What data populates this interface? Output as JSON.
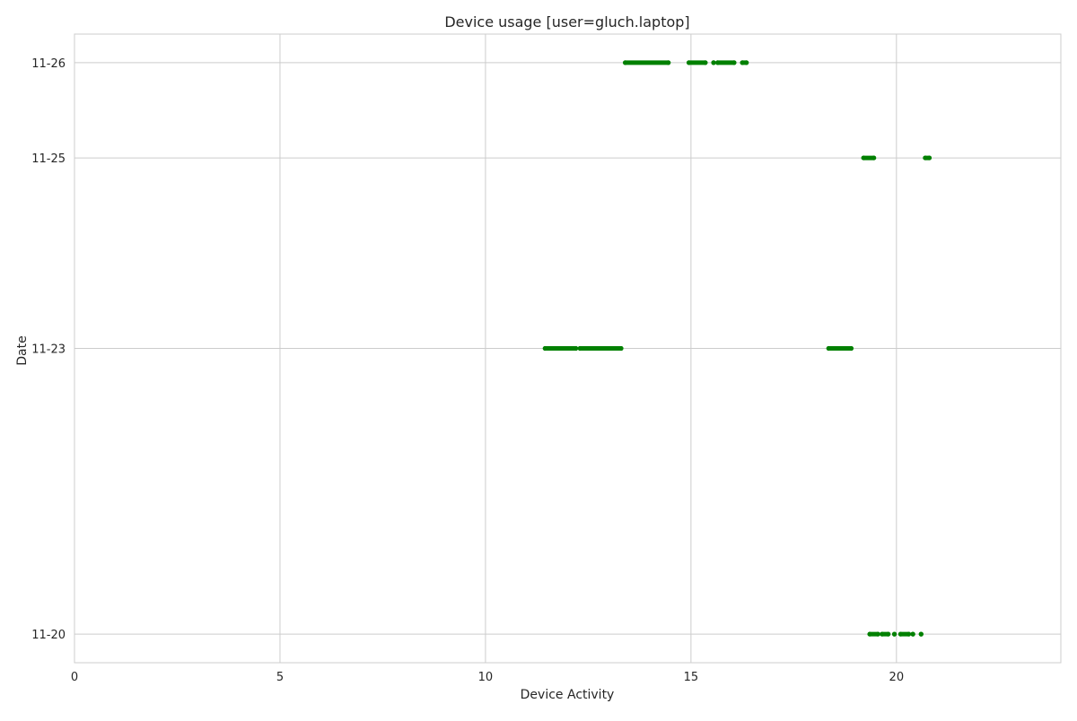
{
  "chart_data": {
    "type": "scatter",
    "title": "Device usage [user=gluch.laptop]",
    "xlabel": "Device Activity",
    "ylabel": "Date",
    "xlim": [
      0,
      24
    ],
    "x_ticks": [
      0,
      5,
      10,
      15,
      20
    ],
    "y_ticks": [
      "11-20",
      "11-23",
      "11-25",
      "11-26"
    ],
    "ylim_days": [
      "11-19.9",
      "11-26.3"
    ],
    "grid": true,
    "marker_color": "#008000",
    "segments": [
      {
        "date": "11-26",
        "start": 13.4,
        "end": 14.45
      },
      {
        "date": "11-26",
        "start": 14.95,
        "end": 15.35
      },
      {
        "date": "11-26",
        "start": 15.55,
        "end": 15.55
      },
      {
        "date": "11-26",
        "start": 15.65,
        "end": 16.05
      },
      {
        "date": "11-26",
        "start": 16.25,
        "end": 16.35
      },
      {
        "date": "11-25",
        "start": 19.2,
        "end": 19.45
      },
      {
        "date": "11-25",
        "start": 20.7,
        "end": 20.8
      },
      {
        "date": "11-23",
        "start": 11.45,
        "end": 12.2
      },
      {
        "date": "11-23",
        "start": 12.3,
        "end": 13.3
      },
      {
        "date": "11-23",
        "start": 18.35,
        "end": 18.9
      },
      {
        "date": "11-20",
        "start": 19.35,
        "end": 19.55
      },
      {
        "date": "11-20",
        "start": 19.65,
        "end": 19.8
      },
      {
        "date": "11-20",
        "start": 19.95,
        "end": 19.95
      },
      {
        "date": "11-20",
        "start": 20.1,
        "end": 20.3
      },
      {
        "date": "11-20",
        "start": 20.4,
        "end": 20.4
      },
      {
        "date": "11-20",
        "start": 20.6,
        "end": 20.6
      }
    ]
  }
}
